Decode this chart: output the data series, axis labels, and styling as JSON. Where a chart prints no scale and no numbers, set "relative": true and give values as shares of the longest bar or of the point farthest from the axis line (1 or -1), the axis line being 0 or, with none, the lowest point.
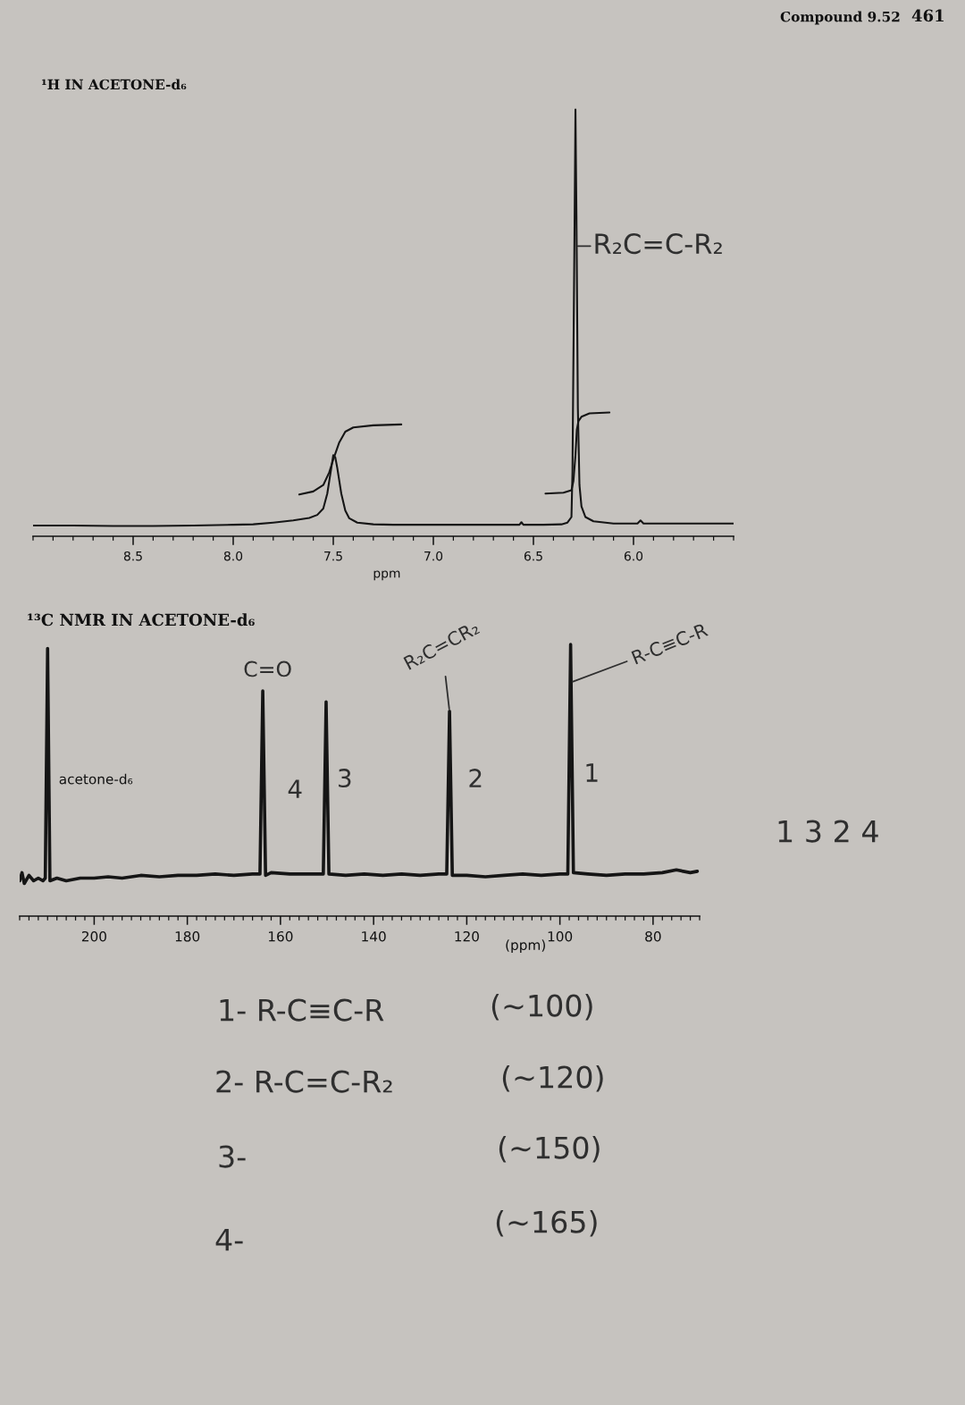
{
  "chart_data": [
    {
      "type": "line",
      "title": "¹H IN ACETONE-d₆",
      "xlabel": "ppm",
      "relative": true,
      "xlim": [
        9.0,
        5.5
      ],
      "xticks": [
        {
          "value": 9.0,
          "label": null
        },
        {
          "value": 8.9,
          "label": null
        },
        {
          "value": 8.8,
          "label": null
        },
        {
          "value": 8.7,
          "label": null
        },
        {
          "value": 8.6,
          "label": null
        },
        {
          "value": 8.5,
          "label": "8.5"
        },
        {
          "value": 8.4,
          "label": null
        },
        {
          "value": 8.3,
          "label": null
        },
        {
          "value": 8.2,
          "label": null
        },
        {
          "value": 8.1,
          "label": null
        },
        {
          "value": 8.0,
          "label": "8.0"
        },
        {
          "value": 7.9,
          "label": null
        },
        {
          "value": 7.8,
          "label": null
        },
        {
          "value": 7.7,
          "label": null
        },
        {
          "value": 7.6,
          "label": null
        },
        {
          "value": 7.5,
          "label": "7.5"
        },
        {
          "value": 7.4,
          "label": null
        },
        {
          "value": 7.3,
          "label": null
        },
        {
          "value": 7.2,
          "label": null
        },
        {
          "value": 7.1,
          "label": null
        },
        {
          "value": 7.0,
          "label": "7.0"
        },
        {
          "value": 6.9,
          "label": null
        },
        {
          "value": 6.8,
          "label": null
        },
        {
          "value": 6.7,
          "label": null
        },
        {
          "value": 6.6,
          "label": null
        },
        {
          "value": 6.5,
          "label": "6.5"
        },
        {
          "value": 6.4,
          "label": null
        },
        {
          "value": 6.3,
          "label": null
        },
        {
          "value": 6.2,
          "label": null
        },
        {
          "value": 6.1,
          "label": null
        },
        {
          "value": 6.0,
          "label": "6.0"
        },
        {
          "value": 5.9,
          "label": null
        },
        {
          "value": 5.8,
          "label": null
        },
        {
          "value": 5.7,
          "label": null
        },
        {
          "value": 5.6,
          "label": null
        },
        {
          "value": 5.5,
          "label": null
        }
      ],
      "series": [
        {
          "color": "#151515",
          "x": [
            9.0,
            8.8,
            8.6,
            8.4,
            8.2,
            8.0,
            7.9,
            7.8,
            7.7,
            7.62,
            7.58,
            7.55,
            7.53,
            7.51,
            7.5,
            7.49,
            7.48,
            7.46,
            7.44,
            7.42,
            7.38,
            7.3,
            7.2,
            7.0,
            6.8,
            6.6,
            6.57,
            6.56,
            6.55,
            6.45,
            6.36,
            6.33,
            6.31,
            6.305,
            6.295,
            6.29,
            6.285,
            6.278,
            6.27,
            6.26,
            6.24,
            6.2,
            6.1,
            5.98,
            5.965,
            5.95,
            5.8,
            5.5
          ],
          "values": [
            0.025,
            0.025,
            0.024,
            0.024,
            0.025,
            0.027,
            0.028,
            0.032,
            0.037,
            0.043,
            0.05,
            0.065,
            0.1,
            0.16,
            0.19,
            0.185,
            0.16,
            0.1,
            0.06,
            0.042,
            0.032,
            0.028,
            0.027,
            0.027,
            0.027,
            0.027,
            0.027,
            0.033,
            0.027,
            0.027,
            0.028,
            0.032,
            0.045,
            0.15,
            0.7,
            1.0,
            0.75,
            0.3,
            0.12,
            0.07,
            0.045,
            0.035,
            0.03,
            0.03,
            0.037,
            0.03,
            0.03,
            0.03
          ]
        },
        {
          "color": "#151515",
          "x": [
            7.67,
            7.6,
            7.55,
            7.52,
            7.5,
            7.47,
            7.44,
            7.4,
            7.3,
            7.16
          ],
          "values": [
            0.098,
            0.105,
            0.12,
            0.15,
            0.18,
            0.22,
            0.245,
            0.255,
            0.26,
            0.262
          ]
        },
        {
          "color": "#151515",
          "x": [
            6.44,
            6.35,
            6.31,
            6.3,
            6.29,
            6.283,
            6.275,
            6.26,
            6.22,
            6.12
          ],
          "values": [
            0.1,
            0.102,
            0.108,
            0.13,
            0.19,
            0.25,
            0.27,
            0.28,
            0.288,
            0.29
          ]
        }
      ],
      "annotations": [
        "Compound 9.52",
        "461",
        {
          "text": "R₂C=C-R₂",
          "x": 6.29,
          "y": 0.68
        }
      ]
    },
    {
      "type": "line",
      "title": "¹³C NMR IN ACETONE-d₆",
      "xlabel": "(ppm)",
      "relative": true,
      "xlim": [
        216,
        70
      ],
      "xticks": [
        200,
        180,
        160,
        140,
        120,
        100,
        80,
        {
          "value": 216,
          "label": null
        },
        {
          "value": 214,
          "label": null
        },
        {
          "value": 212,
          "label": null
        },
        {
          "value": 210,
          "label": null
        },
        {
          "value": 208,
          "label": null
        },
        {
          "value": 206,
          "label": null
        },
        {
          "value": 204,
          "label": null
        },
        {
          "value": 202,
          "label": null
        },
        {
          "value": 198,
          "label": null
        },
        {
          "value": 196,
          "label": null
        },
        {
          "value": 194,
          "label": null
        },
        {
          "value": 192,
          "label": null
        },
        {
          "value": 190,
          "label": null
        },
        {
          "value": 188,
          "label": null
        },
        {
          "value": 186,
          "label": null
        },
        {
          "value": 184,
          "label": null
        },
        {
          "value": 182,
          "label": null
        },
        {
          "value": 178,
          "label": null
        },
        {
          "value": 176,
          "label": null
        },
        {
          "value": 174,
          "label": null
        },
        {
          "value": 172,
          "label": null
        },
        {
          "value": 170,
          "label": null
        },
        {
          "value": 168,
          "label": null
        },
        {
          "value": 166,
          "label": null
        },
        {
          "value": 164,
          "label": null
        },
        {
          "value": 162,
          "label": null
        },
        {
          "value": 158,
          "label": null
        },
        {
          "value": 156,
          "label": null
        },
        {
          "value": 154,
          "label": null
        },
        {
          "value": 152,
          "label": null
        },
        {
          "value": 150,
          "label": null
        },
        {
          "value": 148,
          "label": null
        },
        {
          "value": 146,
          "label": null
        },
        {
          "value": 144,
          "label": null
        },
        {
          "value": 142,
          "label": null
        },
        {
          "value": 138,
          "label": null
        },
        {
          "value": 136,
          "label": null
        },
        {
          "value": 134,
          "label": null
        },
        {
          "value": 132,
          "label": null
        },
        {
          "value": 130,
          "label": null
        },
        {
          "value": 128,
          "label": null
        },
        {
          "value": 126,
          "label": null
        },
        {
          "value": 124,
          "label": null
        },
        {
          "value": 122,
          "label": null
        },
        {
          "value": 118,
          "label": null
        },
        {
          "value": 116,
          "label": null
        },
        {
          "value": 114,
          "label": null
        },
        {
          "value": 112,
          "label": null
        },
        {
          "value": 110,
          "label": null
        },
        {
          "value": 108,
          "label": null
        },
        {
          "value": 106,
          "label": null
        },
        {
          "value": 104,
          "label": null
        },
        {
          "value": 102,
          "label": null
        },
        {
          "value": 98,
          "label": null
        },
        {
          "value": 96,
          "label": null
        },
        {
          "value": 94,
          "label": null
        },
        {
          "value": 92,
          "label": null
        },
        {
          "value": 90,
          "label": null
        },
        {
          "value": 88,
          "label": null
        },
        {
          "value": 86,
          "label": null
        },
        {
          "value": 84,
          "label": null
        },
        {
          "value": 82,
          "label": null
        },
        {
          "value": 78,
          "label": null
        },
        {
          "value": 76,
          "label": null
        },
        {
          "value": 74,
          "label": null
        },
        {
          "value": 72,
          "label": null
        },
        {
          "value": 70,
          "label": null
        }
      ],
      "series": [
        {
          "color": "#151515",
          "x": [
            216,
            215.5,
            215,
            214,
            213,
            212,
            211,
            210.5,
            210,
            209.5,
            208,
            206,
            203,
            200,
            197,
            194,
            190,
            186,
            182,
            178,
            174,
            170,
            166,
            164.4,
            163.8,
            163.2,
            162,
            158,
            154,
            150.8,
            150.2,
            149.6,
            146,
            142,
            138,
            134,
            130,
            126,
            124.3,
            123.7,
            123.1,
            120,
            116,
            112,
            108,
            104,
            100,
            98.3,
            97.7,
            97.1,
            94,
            90,
            86,
            82,
            78,
            75,
            72,
            70.5
          ],
          "values": [
            0.13,
            0.16,
            0.12,
            0.15,
            0.13,
            0.14,
            0.13,
            0.14,
            0.985,
            0.13,
            0.14,
            0.13,
            0.14,
            0.14,
            0.145,
            0.14,
            0.15,
            0.145,
            0.15,
            0.15,
            0.155,
            0.15,
            0.155,
            0.155,
            0.829,
            0.15,
            0.16,
            0.155,
            0.155,
            0.155,
            0.789,
            0.155,
            0.15,
            0.155,
            0.15,
            0.155,
            0.15,
            0.155,
            0.155,
            0.754,
            0.15,
            0.15,
            0.145,
            0.15,
            0.155,
            0.15,
            0.155,
            0.155,
            1.0,
            0.16,
            0.155,
            0.15,
            0.155,
            0.155,
            0.16,
            0.17,
            0.16,
            0.165
          ]
        }
      ],
      "annotations": [
        {
          "text": "acetone-d₆",
          "x": 210,
          "y": 0.5
        },
        {
          "text": "C=O",
          "x": 163.8,
          "y": 0.829
        },
        {
          "text": "4",
          "x": 163.8,
          "y": 0.46
        },
        {
          "text": "3",
          "x": 150.2,
          "y": 0.5
        },
        {
          "text": "R₂C=CR₂",
          "x": 123.7,
          "y": 0.754
        },
        {
          "text": "2",
          "x": 123.7,
          "y": 0.5
        },
        {
          "text": "R-C≡C-R",
          "x": 97.7,
          "y": 0.86
        },
        {
          "text": "1",
          "x": 97.7,
          "y": 0.52
        },
        "1- R-C≡C-R",
        "(~100)",
        "2- R-C=C-R₂",
        "(~120)",
        "3-",
        "(~150)",
        "4-",
        "(~165)",
        "1 3 2 4"
      ]
    }
  ]
}
